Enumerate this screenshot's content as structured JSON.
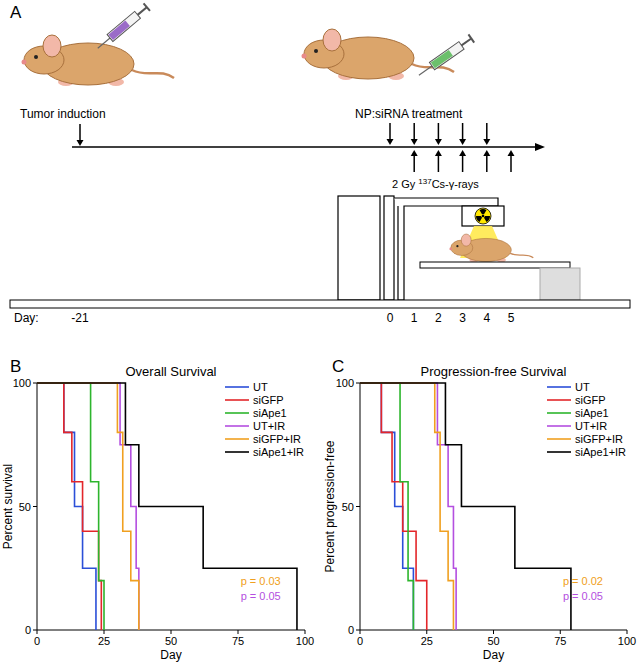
{
  "figure": {
    "panel_labels": [
      "A",
      "B",
      "C"
    ]
  },
  "diagram": {
    "steps": [
      {
        "label": "Tumor induction"
      },
      {
        "label": "NP:siRNA treatment"
      }
    ],
    "irradiation": {
      "dose": "2 Gy ",
      "isotope": "137",
      "source": "Cs-γ-rays"
    },
    "timeline": {
      "label": "Day:",
      "days": [
        -21,
        0,
        1,
        2,
        3,
        4,
        5
      ],
      "treatment_days": [
        0,
        1,
        2,
        3,
        4
      ],
      "irradiation_days": [
        1,
        2,
        3,
        4,
        5
      ]
    }
  },
  "chart_data": [
    {
      "type": "line",
      "title": "Overall Survival",
      "x_label": "Day",
      "y_label": "Percent survival",
      "xlim": [
        0,
        100
      ],
      "xticks": [
        0,
        25,
        50,
        75,
        100
      ],
      "ylim": [
        0,
        100
      ],
      "yticks": [
        0,
        50,
        100
      ],
      "line_style": "step",
      "legend": "top-right",
      "series": [
        {
          "name": "UT",
          "color": "#2b4fd8",
          "x": [
            0,
            10,
            14,
            17,
            22
          ],
          "values": [
            100,
            80,
            50,
            25,
            0
          ]
        },
        {
          "name": "siGFP",
          "color": "#e3262a",
          "x": [
            0,
            10,
            13,
            17,
            23,
            24
          ],
          "values": [
            100,
            80,
            60,
            40,
            20,
            0
          ]
        },
        {
          "name": "siApe1",
          "color": "#2db52d",
          "x": [
            0,
            20,
            23,
            25
          ],
          "values": [
            100,
            60,
            20,
            0
          ]
        },
        {
          "name": "UT+IR",
          "color": "#b44fe0",
          "x": [
            0,
            31,
            35,
            37,
            38
          ],
          "values": [
            100,
            75,
            50,
            25,
            0
          ]
        },
        {
          "name": "siGFP+IR",
          "color": "#f0a020",
          "x": [
            0,
            30,
            32,
            35,
            38
          ],
          "values": [
            100,
            80,
            40,
            20,
            0
          ]
        },
        {
          "name": "siApe1+IR",
          "color": "#000000",
          "x": [
            0,
            33,
            38,
            62,
            97
          ],
          "values": [
            100,
            75,
            50,
            25,
            0
          ]
        }
      ],
      "annotations": [
        {
          "text": "p = 0.03",
          "color": "#f0a020"
        },
        {
          "text": "p = 0.05",
          "color": "#b44fe0"
        }
      ]
    },
    {
      "type": "line",
      "title": "Progression-free Survival",
      "x_label": "Day",
      "y_label": "Percent progression-free",
      "xlim": [
        0,
        100
      ],
      "xticks": [
        0,
        25,
        50,
        75,
        100
      ],
      "ylim": [
        0,
        100
      ],
      "yticks": [
        0,
        50,
        100
      ],
      "line_style": "step",
      "legend": "top-right",
      "series": [
        {
          "name": "UT",
          "color": "#2b4fd8",
          "x": [
            0,
            8,
            13,
            16,
            20
          ],
          "values": [
            100,
            80,
            50,
            25,
            0
          ]
        },
        {
          "name": "siGFP",
          "color": "#e3262a",
          "x": [
            0,
            8,
            12,
            16,
            21,
            25
          ],
          "values": [
            100,
            80,
            60,
            40,
            20,
            0
          ]
        },
        {
          "name": "siApe1",
          "color": "#2db52d",
          "x": [
            0,
            15,
            18,
            20
          ],
          "values": [
            100,
            60,
            20,
            0
          ]
        },
        {
          "name": "UT+IR",
          "color": "#b44fe0",
          "x": [
            0,
            29,
            33,
            35,
            36
          ],
          "values": [
            100,
            75,
            50,
            25,
            0
          ]
        },
        {
          "name": "siGFP+IR",
          "color": "#f0a020",
          "x": [
            0,
            28,
            30,
            33,
            35
          ],
          "values": [
            100,
            80,
            40,
            20,
            0
          ]
        },
        {
          "name": "siApe1+IR",
          "color": "#000000",
          "x": [
            0,
            32,
            38,
            58,
            79
          ],
          "values": [
            100,
            75,
            50,
            25,
            0
          ]
        }
      ],
      "annotations": [
        {
          "text": "p = 0.02",
          "color": "#f0a020"
        },
        {
          "text": "p = 0.05",
          "color": "#b44fe0"
        }
      ]
    }
  ]
}
